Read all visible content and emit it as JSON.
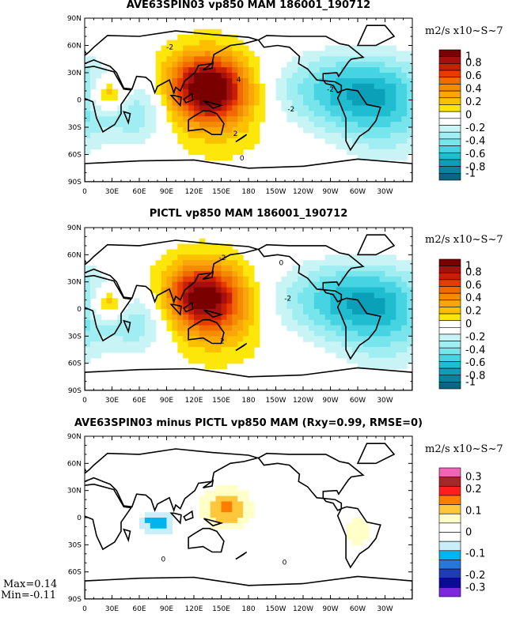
{
  "chart_data": [
    {
      "type": "heatmap",
      "title": "AVE63SPIN03 vp850 MAM 186001_190712",
      "units": "m2/s x10~S~7",
      "x_ticks": [
        "0",
        "30E",
        "60E",
        "90E",
        "120E",
        "150E",
        "180",
        "150W",
        "120W",
        "90W",
        "60W",
        "30W"
      ],
      "y_ticks": [
        "90N",
        "60N",
        "30N",
        "0",
        "30S",
        "60S",
        "90S"
      ],
      "colorbar_labels": [
        "1",
        "0.8",
        "0.6",
        "0.4",
        "0.2",
        "0",
        "-0.2",
        "-0.4",
        "-0.6",
        "-0.8",
        "-1"
      ],
      "contour_labels": [
        "-2",
        "4",
        "-2",
        "2",
        "-2",
        "0"
      ],
      "colors": [
        "#7a0000",
        "#a50f0f",
        "#c81f00",
        "#e63c00",
        "#f06a00",
        "#f58c00",
        "#faa50a",
        "#fcc000",
        "#fde60a",
        "#ffffff",
        "#ffffff",
        "#c8f4f6",
        "#a0eef2",
        "#78e4ec",
        "#46d4e2",
        "#20bcd0",
        "#0aa0b8",
        "#0a82a0",
        "#0a6482"
      ],
      "fields": [
        {
          "lon": 135,
          "lat": 15,
          "slon": 30,
          "slat": 25,
          "amp": 1.0
        },
        {
          "lon": 150,
          "lat": -10,
          "slon": 35,
          "slat": 30,
          "amp": 0.25
        },
        {
          "lon": 25,
          "lat": 5,
          "slon": 15,
          "slat": 12,
          "amp": 0.5
        },
        {
          "lon": 290,
          "lat": 10,
          "slon": 60,
          "slat": 30,
          "amp": -0.55
        },
        {
          "lon": 330,
          "lat": -20,
          "slon": 40,
          "slat": 40,
          "amp": -0.3
        },
        {
          "lon": 60,
          "lat": -15,
          "slon": 25,
          "slat": 25,
          "amp": -0.3
        }
      ]
    },
    {
      "type": "heatmap",
      "title": "PICTL vp850 MAM 186001_190712",
      "units": "m2/s x10~S~7",
      "x_ticks": [
        "0",
        "30E",
        "60E",
        "90E",
        "120E",
        "150E",
        "180",
        "150W",
        "120W",
        "90W",
        "60W",
        "30W"
      ],
      "y_ticks": [
        "90N",
        "60N",
        "30N",
        "0",
        "30S",
        "60S",
        "90S"
      ],
      "colorbar_labels": [
        "1",
        "0.8",
        "0.6",
        "0.4",
        "0.2",
        "0",
        "-0.2",
        "-0.4",
        "-0.6",
        "-0.8",
        "-1"
      ],
      "contour_labels": [
        "-2",
        "0",
        "-2",
        "2"
      ],
      "colors": [
        "#7a0000",
        "#a50f0f",
        "#c81f00",
        "#e63c00",
        "#f06a00",
        "#f58c00",
        "#faa50a",
        "#fcc000",
        "#fde60a",
        "#ffffff",
        "#ffffff",
        "#c8f4f6",
        "#a0eef2",
        "#78e4ec",
        "#46d4e2",
        "#20bcd0",
        "#0aa0b8",
        "#0a82a0",
        "#0a6482"
      ],
      "fields": [
        {
          "lon": 130,
          "lat": 15,
          "slon": 30,
          "slat": 25,
          "amp": 0.9
        },
        {
          "lon": 150,
          "lat": -10,
          "slon": 35,
          "slat": 30,
          "amp": 0.25
        },
        {
          "lon": 25,
          "lat": 5,
          "slon": 15,
          "slat": 12,
          "amp": 0.5
        },
        {
          "lon": 290,
          "lat": 10,
          "slon": 60,
          "slat": 30,
          "amp": -0.55
        },
        {
          "lon": 330,
          "lat": -20,
          "slon": 40,
          "slat": 40,
          "amp": -0.3
        },
        {
          "lon": 60,
          "lat": -15,
          "slon": 25,
          "slat": 25,
          "amp": -0.3
        }
      ]
    },
    {
      "type": "heatmap",
      "title": "AVE63SPIN03 minus PICTL vp850 MAM (Rxy=0.99, RMSE=0)",
      "units": "m2/s x10~S~7",
      "x_ticks": [
        "0",
        "30E",
        "60E",
        "90E",
        "120E",
        "150E",
        "180",
        "150W",
        "120W",
        "90W",
        "60W",
        "30W"
      ],
      "y_ticks": [
        "90N",
        "60N",
        "30N",
        "0",
        "30S",
        "60S",
        "90S"
      ],
      "colorbar_labels": [
        "0.3",
        "0.2",
        "0.1",
        "0",
        "-0.1",
        "-0.2",
        "-0.3"
      ],
      "contour_labels": [
        "0",
        "0"
      ],
      "colors": [
        "#f064b4",
        "#a52828",
        "#ff1e1e",
        "#ff7d00",
        "#ffc83c",
        "#ffffc8",
        "#ffffff",
        "#ffffff",
        "#c8eefa",
        "#00b4f0",
        "#2878dc",
        "#1e3cb4",
        "#0a0a96",
        "#7d28dc"
      ],
      "fields": [
        {
          "lon": 155,
          "lat": 10,
          "slon": 20,
          "slat": 16,
          "amp": 0.14
        },
        {
          "lon": 300,
          "lat": -15,
          "slon": 10,
          "slat": 15,
          "amp": 0.08
        },
        {
          "lon": 80,
          "lat": -5,
          "slon": 12,
          "slat": 8,
          "amp": -0.11
        },
        {
          "lon": 75,
          "lat": -20,
          "slon": 40,
          "slat": 25,
          "amp": -0.02
        }
      ],
      "max_label": "Max=0.14",
      "min_label": "Min=-0.11"
    }
  ]
}
